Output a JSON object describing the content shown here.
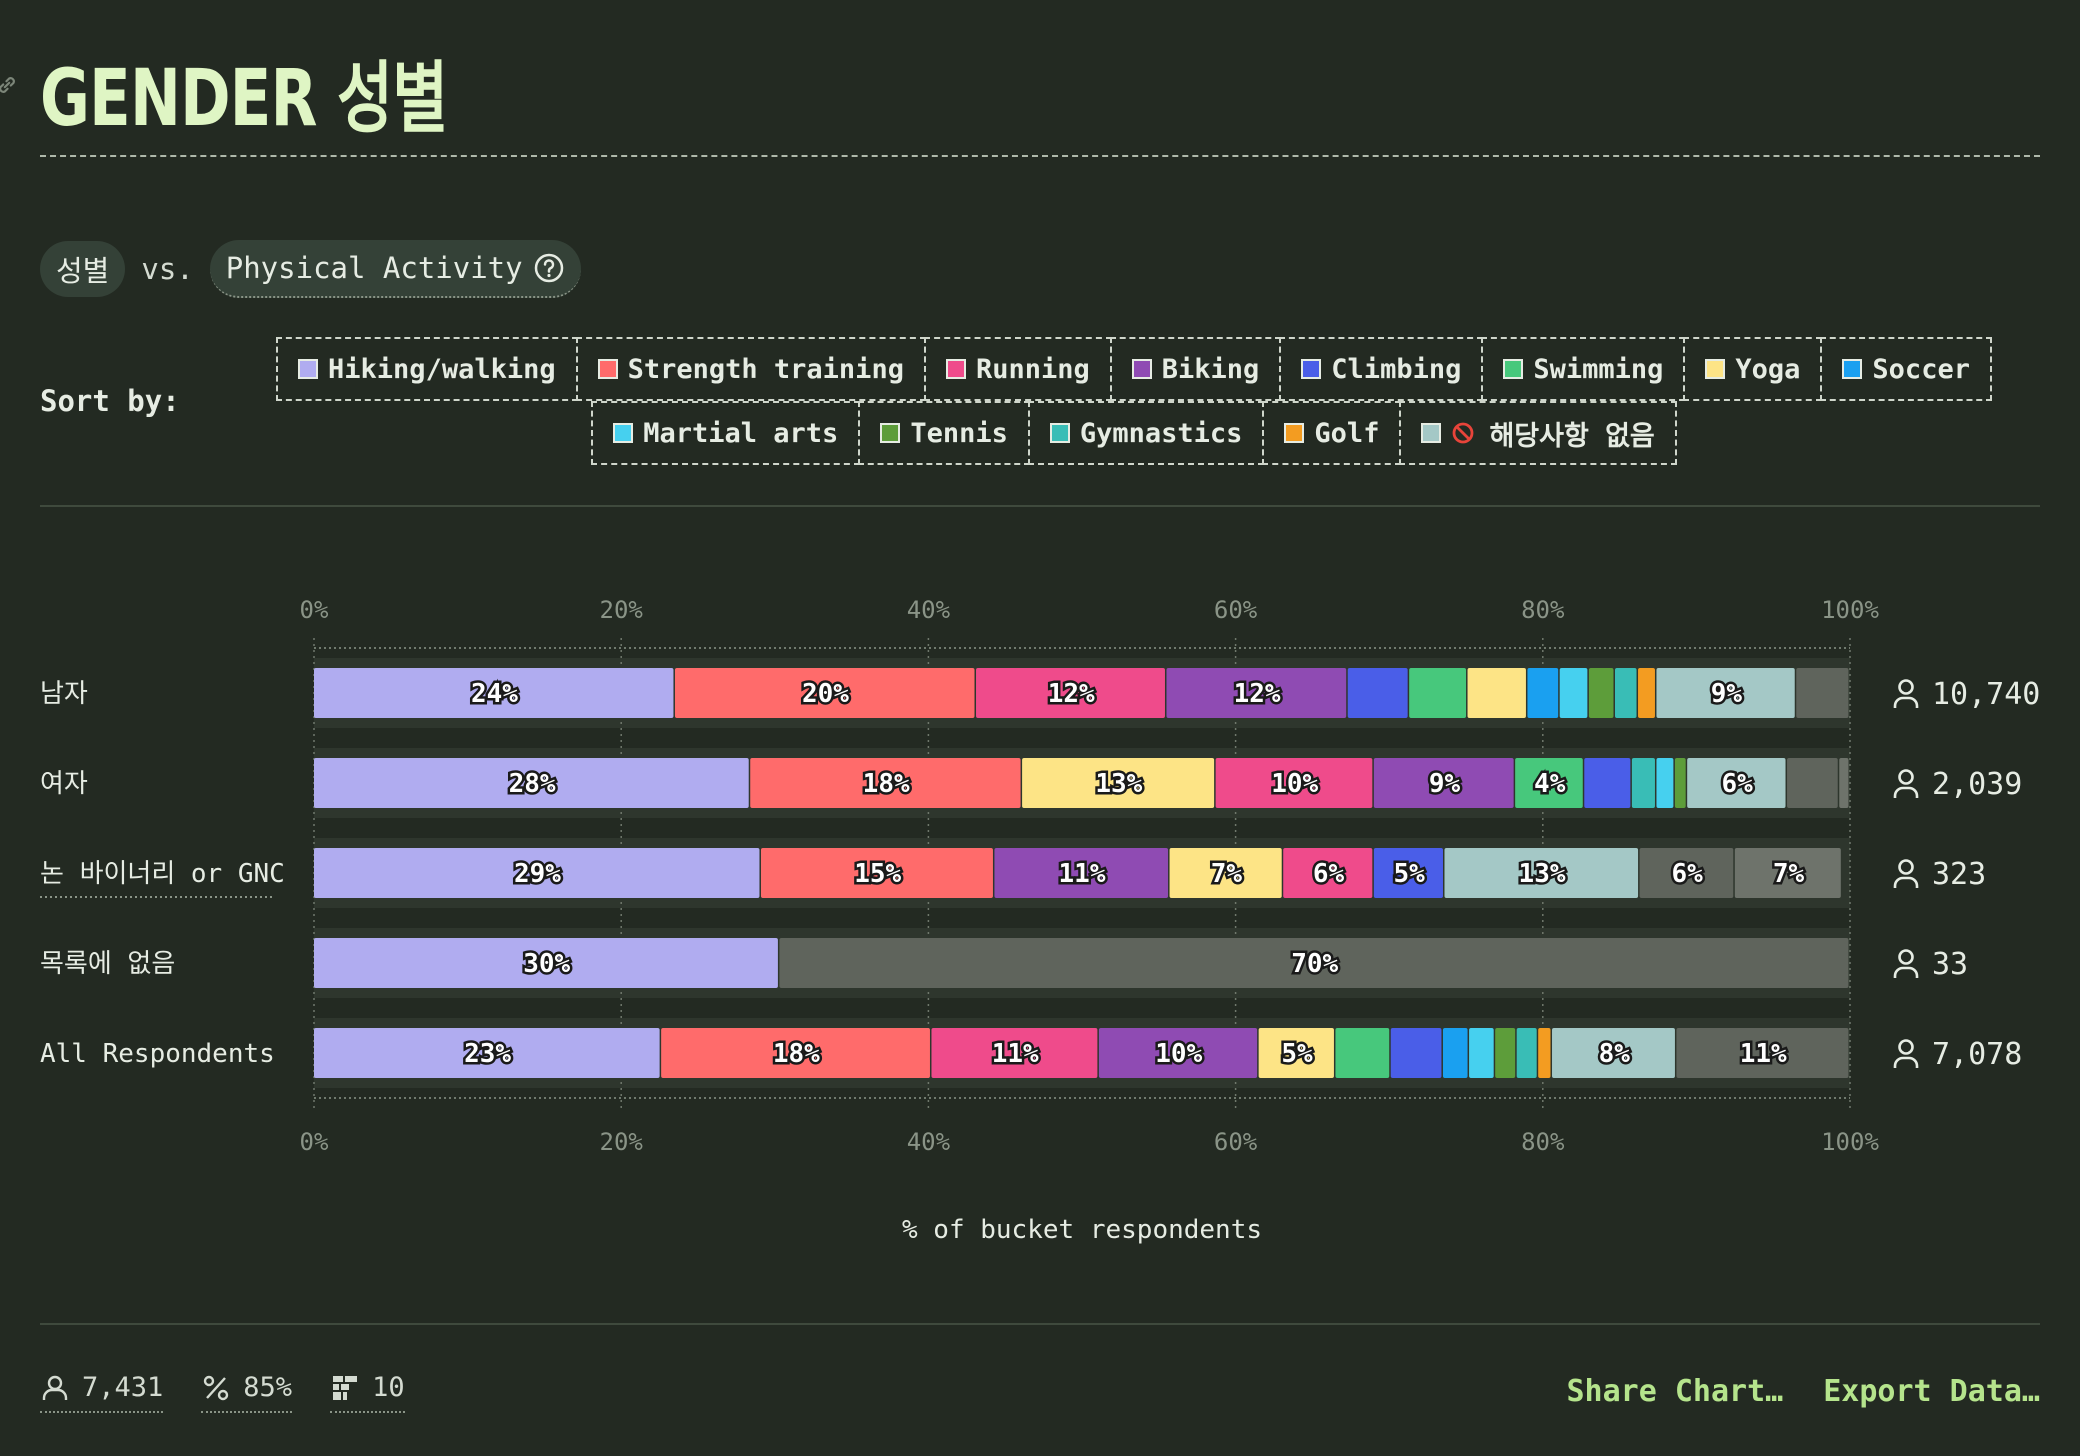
{
  "header": {
    "title": "GENDER 성별"
  },
  "comparison": {
    "primary": "성별",
    "vs_label": "vs.",
    "secondary": "Physical Activity"
  },
  "sort": {
    "label": "Sort by:",
    "row1": [
      {
        "label": "Hiking/walking",
        "color": "#b0acf0"
      },
      {
        "label": "Strength training",
        "color": "#ff6b6b"
      },
      {
        "label": "Running",
        "color": "#ef4b8b"
      },
      {
        "label": "Biking",
        "color": "#8f4bb3"
      },
      {
        "label": "Climbing",
        "color": "#4a5ee8"
      },
      {
        "label": "Swimming",
        "color": "#47c87c"
      },
      {
        "label": "Yoga",
        "color": "#fde486"
      },
      {
        "label": "Soccer",
        "color": "#1aa0f0"
      }
    ],
    "row2": [
      {
        "label": "Martial arts",
        "color": "#46d0ef"
      },
      {
        "label": "Tennis",
        "color": "#5d9d3a"
      },
      {
        "label": "Gymnastics",
        "color": "#39bdb6"
      },
      {
        "label": "Golf",
        "color": "#f39c21"
      },
      {
        "label": "해당사항 없음",
        "color": "#a4c8c6"
      }
    ]
  },
  "chart_data": {
    "type": "bar",
    "orientation": "horizontal",
    "stacked": true,
    "xlabel": "% of bucket respondents",
    "xlim": [
      0,
      100
    ],
    "xticks": [
      "0%",
      "20%",
      "40%",
      "60%",
      "80%",
      "100%"
    ],
    "categories": [
      "남자",
      "여자",
      "논 바이너리 or GNC",
      "목록에 없음",
      "All Respondents"
    ],
    "counts": [
      "10,740",
      "2,039",
      "323",
      "33",
      "7,078"
    ],
    "rows": [
      [
        {
          "c": "#b0acf0",
          "v": 23.5,
          "label": "24%"
        },
        {
          "c": "#ff6b6b",
          "v": 19.6,
          "label": "20%"
        },
        {
          "c": "#ef4b8b",
          "v": 12.4,
          "label": "12%"
        },
        {
          "c": "#8f4bb3",
          "v": 11.8,
          "label": "12%"
        },
        {
          "c": "#4a5ee8",
          "v": 4.0
        },
        {
          "c": "#47c87c",
          "v": 3.8
        },
        {
          "c": "#fde486",
          "v": 3.9
        },
        {
          "c": "#1aa0f0",
          "v": 2.1
        },
        {
          "c": "#46d0ef",
          "v": 1.9
        },
        {
          "c": "#5d9d3a",
          "v": 1.7
        },
        {
          "c": "#39bdb6",
          "v": 1.5
        },
        {
          "c": "#f39c21",
          "v": 1.2
        },
        {
          "c": "#a4c8c6",
          "v": 9.1,
          "label": "9%"
        },
        {
          "c": "#5f645c",
          "v": 3.5
        }
      ],
      [
        {
          "c": "#b0acf0",
          "v": 28.4,
          "label": "28%"
        },
        {
          "c": "#ff6b6b",
          "v": 17.7,
          "label": "18%"
        },
        {
          "c": "#fde486",
          "v": 12.6,
          "label": "13%"
        },
        {
          "c": "#ef4b8b",
          "v": 10.3,
          "label": "10%"
        },
        {
          "c": "#8f4bb3",
          "v": 9.2,
          "label": "9%"
        },
        {
          "c": "#47c87c",
          "v": 4.5,
          "label": "4%"
        },
        {
          "c": "#4a5ee8",
          "v": 3.1
        },
        {
          "c": "#39bdb6",
          "v": 1.6
        },
        {
          "c": "#46d0ef",
          "v": 1.2
        },
        {
          "c": "#5d9d3a",
          "v": 0.8
        },
        {
          "c": "#a4c8c6",
          "v": 6.5,
          "label": "6%"
        },
        {
          "c": "#5f645c",
          "v": 3.4
        },
        {
          "c": "#6e736b",
          "v": 0.7
        }
      ],
      [
        {
          "c": "#b0acf0",
          "v": 29.1,
          "label": "29%"
        },
        {
          "c": "#ff6b6b",
          "v": 15.2,
          "label": "15%"
        },
        {
          "c": "#8f4bb3",
          "v": 11.4,
          "label": "11%"
        },
        {
          "c": "#fde486",
          "v": 7.4,
          "label": "7%"
        },
        {
          "c": "#ef4b8b",
          "v": 5.9,
          "label": "6%"
        },
        {
          "c": "#4a5ee8",
          "v": 4.6,
          "label": "5%"
        },
        {
          "c": "#a4c8c6",
          "v": 12.7,
          "label": "13%"
        },
        {
          "c": "#5f645c",
          "v": 6.2,
          "label": "6%"
        },
        {
          "c": "#6e736b",
          "v": 7.0,
          "label": "7%"
        }
      ],
      [
        {
          "c": "#b0acf0",
          "v": 30.3,
          "label": "30%"
        },
        {
          "c": "#5f645c",
          "v": 69.7,
          "label": "70%"
        }
      ],
      [
        {
          "c": "#b0acf0",
          "v": 22.6,
          "label": "23%"
        },
        {
          "c": "#ff6b6b",
          "v": 17.6,
          "label": "18%"
        },
        {
          "c": "#ef4b8b",
          "v": 10.9,
          "label": "11%"
        },
        {
          "c": "#8f4bb3",
          "v": 10.4,
          "label": "10%"
        },
        {
          "c": "#fde486",
          "v": 5.0,
          "label": "5%"
        },
        {
          "c": "#47c87c",
          "v": 3.6
        },
        {
          "c": "#4a5ee8",
          "v": 3.4
        },
        {
          "c": "#1aa0f0",
          "v": 1.7
        },
        {
          "c": "#46d0ef",
          "v": 1.7
        },
        {
          "c": "#5d9d3a",
          "v": 1.4
        },
        {
          "c": "#39bdb6",
          "v": 1.4
        },
        {
          "c": "#f39c21",
          "v": 0.9
        },
        {
          "c": "#a4c8c6",
          "v": 8.1,
          "label": "8%"
        },
        {
          "c": "#5f645c",
          "v": 11.3,
          "label": "11%"
        }
      ]
    ]
  },
  "footer": {
    "respondents": "7,431",
    "percent": "85%",
    "buckets": "10",
    "share_label": "Share Chart…",
    "export_label": "Export Data…"
  }
}
